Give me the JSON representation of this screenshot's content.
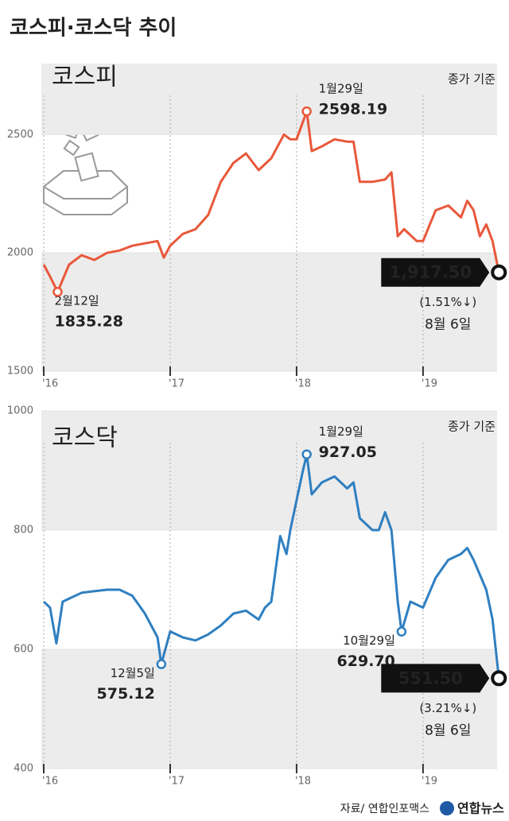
{
  "title": "코스피·코스닥 추이",
  "source": "자료/ 연합인포맥스",
  "logo": "연합뉴스",
  "chart_data": [
    {
      "type": "line",
      "note": "종가 기준",
      "xlim": [
        2016,
        2019.68
      ],
      "ylim": [
        1500,
        2800
      ],
      "xticks": [
        {
          "value": 2016,
          "label": "'16"
        },
        {
          "value": 2017,
          "label": "'17"
        },
        {
          "value": 2018,
          "label": "'18"
        },
        {
          "value": 2019,
          "label": "'19"
        }
      ],
      "yticks": [
        1500,
        2000,
        2500
      ],
      "x": [
        2016.0,
        2016.05,
        2016.11,
        2016.2,
        2016.3,
        2016.4,
        2016.5,
        2016.6,
        2016.7,
        2016.8,
        2016.9,
        2016.95,
        2017.0,
        2017.1,
        2017.2,
        2017.3,
        2017.4,
        2017.5,
        2017.55,
        2017.6,
        2017.7,
        2017.8,
        2017.9,
        2017.95,
        2018.0,
        2018.08,
        2018.12,
        2018.2,
        2018.3,
        2018.4,
        2018.45,
        2018.5,
        2018.6,
        2018.7,
        2018.75,
        2018.8,
        2018.85,
        2018.95,
        2019.0,
        2019.1,
        2019.2,
        2019.3,
        2019.35,
        2019.4,
        2019.45,
        2019.5,
        2019.55,
        2019.6
      ],
      "series": [
        {
          "name": "코스피",
          "color": "#e8583a",
          "values": [
            1950,
            1900,
            1835.28,
            1950,
            1990,
            1970,
            2000,
            2010,
            2030,
            2040,
            2050,
            1980,
            2030,
            2080,
            2100,
            2160,
            2300,
            2380,
            2400,
            2420,
            2350,
            2400,
            2500,
            2480,
            2480,
            2598.19,
            2430,
            2450,
            2480,
            2470,
            2470,
            2300,
            2300,
            2310,
            2340,
            2070,
            2100,
            2050,
            2050,
            2180,
            2200,
            2150,
            2220,
            2180,
            2070,
            2120,
            2050,
            1917.5
          ],
          "value_labels": [
            null,
            null,
            "1835.28",
            null,
            null,
            null,
            null,
            null,
            null,
            null,
            null,
            null,
            null,
            null,
            null,
            null,
            null,
            null,
            null,
            null,
            null,
            null,
            null,
            null,
            null,
            "2598.19",
            null,
            null,
            null,
            null,
            null,
            null,
            null,
            null,
            null,
            null,
            null,
            null,
            null,
            null,
            null,
            null,
            null,
            null,
            null,
            null,
            null,
            "1,917.50"
          ],
          "date_labels": [
            null,
            null,
            "2월12일",
            null,
            null,
            null,
            null,
            null,
            null,
            null,
            null,
            null,
            null,
            null,
            null,
            null,
            null,
            null,
            null,
            null,
            null,
            null,
            null,
            null,
            null,
            "1월29일",
            null,
            null,
            null,
            null,
            null,
            null,
            null,
            null,
            null,
            null,
            null,
            null,
            null,
            null,
            null,
            null,
            null,
            null,
            null,
            null,
            null,
            "8월 6일"
          ],
          "change_label": "(1.51%↓)"
        }
      ]
    },
    {
      "type": "line",
      "note": "종가 기준",
      "xlim": [
        2016,
        2019.68
      ],
      "ylim": [
        400,
        1000
      ],
      "xticks": [
        {
          "value": 2016,
          "label": "'16"
        },
        {
          "value": 2017,
          "label": "'17"
        },
        {
          "value": 2018,
          "label": "'18"
        },
        {
          "value": 2019,
          "label": "'19"
        }
      ],
      "yticks": [
        400,
        600,
        800,
        1000
      ],
      "x": [
        2016.0,
        2016.05,
        2016.1,
        2016.15,
        2016.3,
        2016.5,
        2016.6,
        2016.7,
        2016.8,
        2016.9,
        2016.93,
        2017.0,
        2017.1,
        2017.2,
        2017.3,
        2017.4,
        2017.5,
        2017.6,
        2017.7,
        2017.75,
        2017.8,
        2017.87,
        2017.92,
        2017.95,
        2018.0,
        2018.05,
        2018.08,
        2018.12,
        2018.2,
        2018.3,
        2018.4,
        2018.45,
        2018.5,
        2018.6,
        2018.65,
        2018.7,
        2018.75,
        2018.8,
        2018.83,
        2018.9,
        2019.0,
        2019.1,
        2019.2,
        2019.3,
        2019.35,
        2019.4,
        2019.5,
        2019.55,
        2019.6
      ],
      "series": [
        {
          "name": "코스닥",
          "color": "#2f7fc0",
          "values": [
            680,
            670,
            610,
            680,
            695,
            700,
            700,
            690,
            660,
            620,
            575.12,
            630,
            620,
            615,
            625,
            640,
            660,
            665,
            650,
            670,
            680,
            790,
            760,
            800,
            850,
            900,
            927.05,
            860,
            880,
            890,
            870,
            880,
            820,
            800,
            800,
            830,
            800,
            680,
            629.7,
            680,
            670,
            720,
            750,
            760,
            770,
            750,
            700,
            650,
            551.5
          ],
          "value_labels": [
            null,
            null,
            null,
            null,
            null,
            null,
            null,
            null,
            null,
            null,
            "575.12",
            null,
            null,
            null,
            null,
            null,
            null,
            null,
            null,
            null,
            null,
            null,
            null,
            null,
            null,
            null,
            "927.05",
            null,
            null,
            null,
            null,
            null,
            null,
            null,
            null,
            null,
            null,
            null,
            "629.70",
            null,
            null,
            null,
            null,
            null,
            null,
            null,
            null,
            null,
            "551.50"
          ],
          "date_labels": [
            null,
            null,
            null,
            null,
            null,
            null,
            null,
            null,
            null,
            null,
            "12월5일",
            null,
            null,
            null,
            null,
            null,
            null,
            null,
            null,
            null,
            null,
            null,
            null,
            null,
            null,
            null,
            "1월29일",
            null,
            null,
            null,
            null,
            null,
            null,
            null,
            null,
            null,
            null,
            null,
            "10월29일",
            null,
            null,
            null,
            null,
            null,
            null,
            null,
            null,
            null,
            "8월 6일"
          ],
          "change_label": "(3.21%↓)"
        }
      ]
    }
  ]
}
